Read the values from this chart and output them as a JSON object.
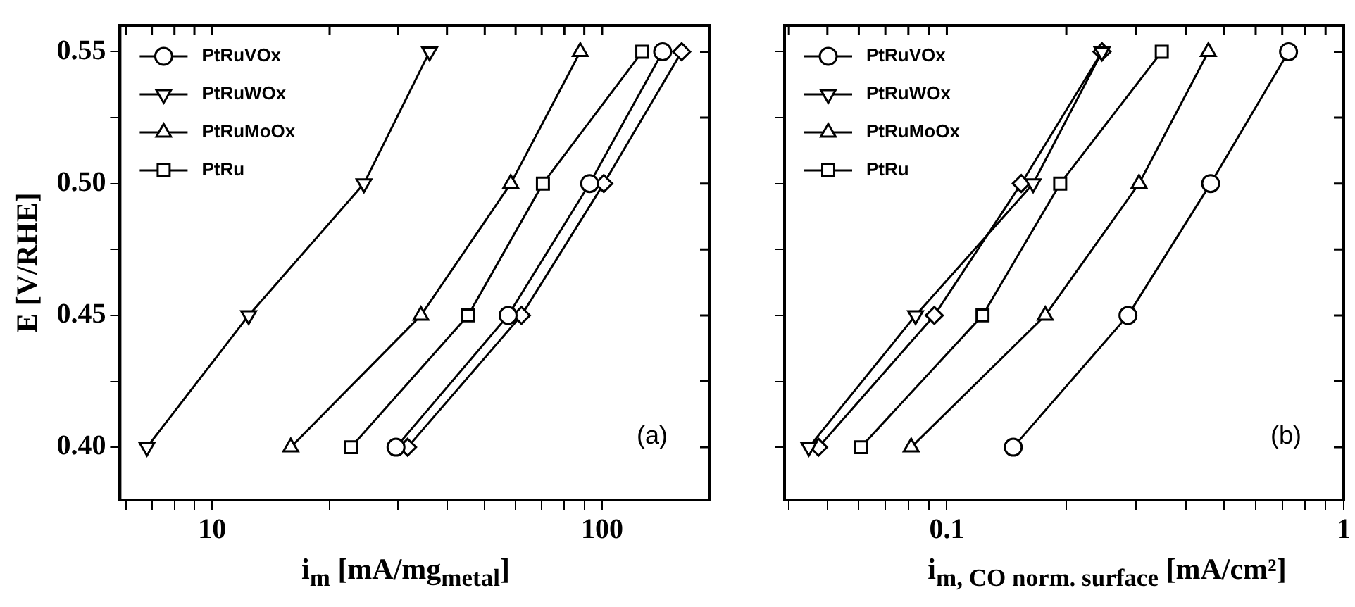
{
  "chart_data": [
    {
      "type": "line",
      "ylabel": "E [V/RHE]",
      "xlabel": "i$_{m}$ [mA/mg$_{metal}$]",
      "annotations": [
        "(a)"
      ],
      "log": "x",
      "legend": "top left",
      "grid": false,
      "line_style": "solid",
      "xlim": [
        5.8,
        189
      ],
      "ylim": [
        0.38,
        0.56
      ],
      "xticks": [
        {
          "value": 6,
          "label": null
        },
        {
          "value": 7,
          "label": null
        },
        {
          "value": 8,
          "label": null
        },
        {
          "value": 9,
          "label": null
        },
        10,
        {
          "value": 20,
          "label": null
        },
        {
          "value": 30,
          "label": null
        },
        {
          "value": 40,
          "label": null
        },
        {
          "value": 50,
          "label": null
        },
        {
          "value": 60,
          "label": null
        },
        {
          "value": 70,
          "label": null
        },
        {
          "value": 80,
          "label": null
        },
        {
          "value": 90,
          "label": null
        },
        100
      ],
      "yticks": [
        {
          "value": 0.4,
          "label": "0.40"
        },
        {
          "value": 0.425,
          "label": null
        },
        {
          "value": 0.45,
          "label": "0.45"
        },
        {
          "value": 0.475,
          "label": null
        },
        {
          "value": 0.5,
          "label": "0.50"
        },
        {
          "value": 0.525,
          "label": null
        },
        {
          "value": 0.55,
          "label": "0.55"
        }
      ],
      "series": [
        {
          "name": "PtRuVOx",
          "color": "#000000",
          "marker": "circle",
          "x": [
            29.6,
            57.4,
            92.9,
            143
          ],
          "values": [
            0.4,
            0.45,
            0.5,
            0.55
          ]
        },
        {
          "name": "PtRuWOx",
          "color": "#000000",
          "marker": "triangle_down",
          "x": [
            6.8,
            12.4,
            24.5,
            36.1
          ],
          "values": [
            0.4,
            0.45,
            0.5,
            0.55
          ]
        },
        {
          "name": "PtRuMoOx",
          "color": "#000000",
          "marker": "triangle",
          "x": [
            15.9,
            34.3,
            58.3,
            87.9
          ],
          "values": [
            0.4,
            0.45,
            0.5,
            0.55
          ]
        },
        {
          "color": "#000000",
          "marker": "diamond",
          "x": [
            31.7,
            62.1,
            101,
            160
          ],
          "values": [
            0.4,
            0.45,
            0.5,
            0.55
          ]
        },
        {
          "name": "PtRu",
          "color": "#000000",
          "marker": "square",
          "x": [
            22.7,
            45.3,
            70.5,
            126.8
          ],
          "values": [
            0.4,
            0.45,
            0.5,
            0.55
          ]
        }
      ]
    },
    {
      "type": "line",
      "xlabel": "i$_{m, CO norm. surface}$ [mA/cm²]",
      "annotations": [
        "(b)"
      ],
      "log": "x",
      "legend": "top left",
      "grid": false,
      "line_style": "solid",
      "tick_labels": "x",
      "xlim": [
        0.039,
        1
      ],
      "ylim": [
        0.38,
        0.56
      ],
      "xticks": [
        {
          "value": 0.04,
          "label": null
        },
        {
          "value": 0.05,
          "label": null
        },
        {
          "value": 0.06,
          "label": null
        },
        {
          "value": 0.07,
          "label": null
        },
        {
          "value": 0.08,
          "label": null
        },
        {
          "value": 0.09,
          "label": null
        },
        0.1,
        {
          "value": 0.2,
          "label": null
        },
        {
          "value": 0.3,
          "label": null
        },
        {
          "value": 0.4,
          "label": null
        },
        {
          "value": 0.5,
          "label": null
        },
        {
          "value": 0.6,
          "label": null
        },
        {
          "value": 0.7,
          "label": null
        },
        {
          "value": 0.8,
          "label": null
        },
        {
          "value": 0.9,
          "label": null
        },
        1
      ],
      "yticks": [
        {
          "value": 0.4,
          "label": null
        },
        {
          "value": 0.425,
          "label": null
        },
        {
          "value": 0.45,
          "label": null
        },
        {
          "value": 0.475,
          "label": null
        },
        {
          "value": 0.5,
          "label": null
        },
        {
          "value": 0.525,
          "label": null
        },
        {
          "value": 0.55,
          "label": null
        }
      ],
      "series": [
        {
          "name": "PtRuVOx",
          "color": "#000000",
          "marker": "circle",
          "x": [
            0.147,
            0.286,
            0.462,
            0.726
          ],
          "values": [
            0.4,
            0.45,
            0.5,
            0.55
          ]
        },
        {
          "name": "PtRuWOx",
          "color": "#000000",
          "marker": "triangle_down",
          "x": [
            0.0449,
            0.0834,
            0.165,
            0.246
          ],
          "values": [
            0.4,
            0.45,
            0.5,
            0.55
          ]
        },
        {
          "name": "PtRuMoOx",
          "color": "#000000",
          "marker": "triangle",
          "x": [
            0.0813,
            0.177,
            0.305,
            0.456
          ],
          "values": [
            0.4,
            0.45,
            0.5,
            0.55
          ]
        },
        {
          "color": "#000000",
          "marker": "diamond",
          "x": [
            0.0475,
            0.093,
            0.154,
            0.246
          ],
          "values": [
            0.4,
            0.45,
            0.5,
            0.55
          ]
        },
        {
          "name": "PtRu",
          "color": "#000000",
          "marker": "square",
          "x": [
            0.0607,
            0.123,
            0.193,
            0.348
          ],
          "values": [
            0.4,
            0.45,
            0.5,
            0.55
          ]
        }
      ]
    }
  ]
}
